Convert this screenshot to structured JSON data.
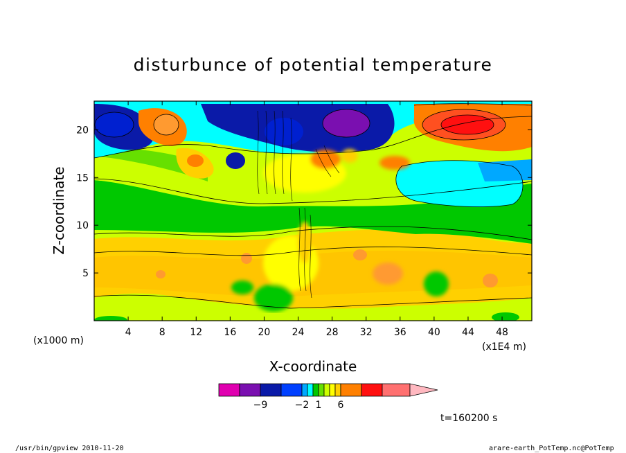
{
  "chart_data": {
    "type": "heatmap",
    "title": "disturbunce of potential temperature",
    "xlabel": "X-coordinate",
    "ylabel": "Z-coordinate",
    "x_units": "(x1E4 m)",
    "z_units": "(x1000 m)",
    "xlim": [
      0,
      51.5
    ],
    "ylim": [
      0,
      23
    ],
    "x_ticks": [
      4,
      8,
      12,
      16,
      20,
      24,
      28,
      32,
      36,
      40,
      44,
      48
    ],
    "y_ticks": [
      5,
      10,
      15,
      20
    ],
    "colorbar": {
      "labels": [
        {
          "value": -9,
          "text": "−9"
        },
        {
          "value": -2,
          "text": "−2"
        },
        {
          "value": 1,
          "text": "1"
        },
        {
          "value": 6,
          "text": "6"
        }
      ],
      "colors": [
        "#e000b0",
        "#7a0fb0",
        "#0a1aa8",
        "#0040ff",
        "#00a8ff",
        "#00ffff",
        "#00c800",
        "#66e000",
        "#ccff00",
        "#ffff00",
        "#ffd000",
        "#ff8000",
        "#ff1010",
        "#ff7070",
        "#ffb8c0"
      ]
    },
    "grid": false,
    "legend": "bottom"
  },
  "annotations": {
    "time": "t=160200 s",
    "footer_left": "/usr/bin/gpview   2010-11-20",
    "footer_right": "arare-earth_PotTemp.nc@PotTemp"
  }
}
